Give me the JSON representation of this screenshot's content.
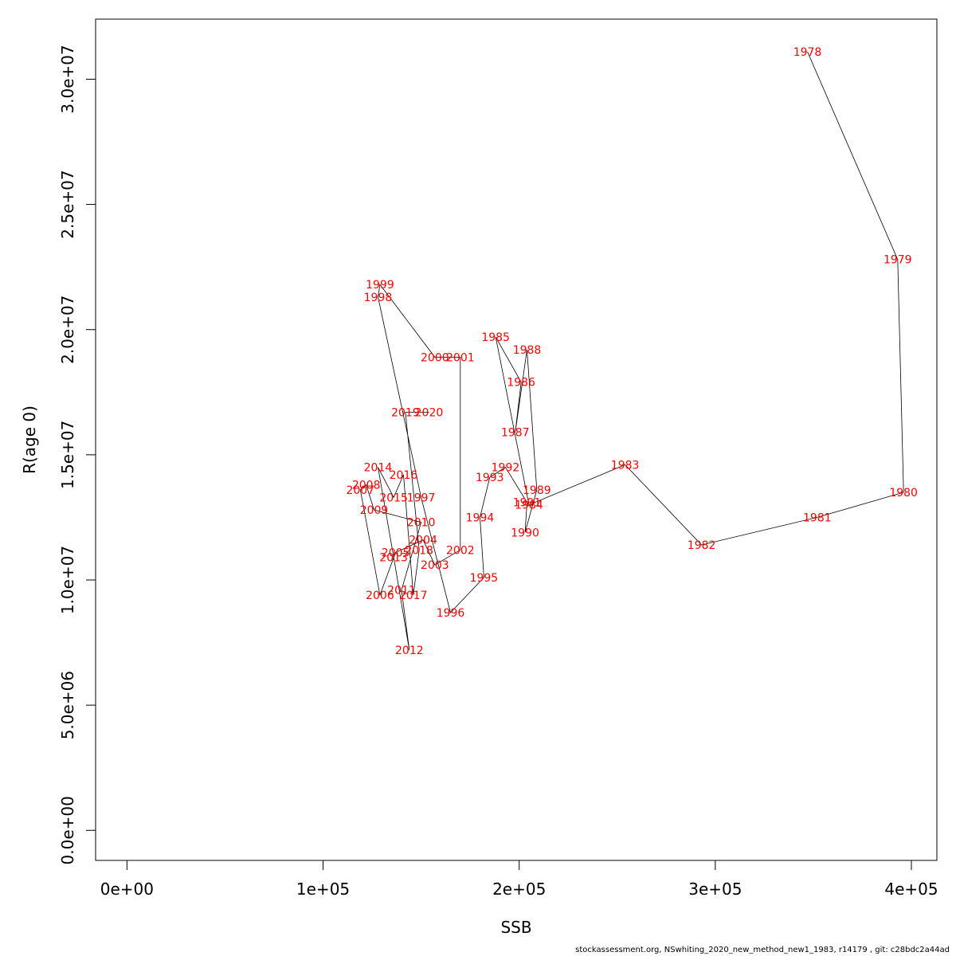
{
  "chart_data": {
    "type": "line",
    "title": "",
    "xlabel": "SSB",
    "ylabel": "R(age 0)",
    "xlim": [
      -16000,
      413000
    ],
    "ylim": [
      -1200000,
      32400000
    ],
    "x_ticks": [
      {
        "value": 0,
        "label": "0e+00"
      },
      {
        "value": 100000,
        "label": "1e+05"
      },
      {
        "value": 200000,
        "label": "2e+05"
      },
      {
        "value": 300000,
        "label": "3e+05"
      },
      {
        "value": 400000,
        "label": "4e+05"
      }
    ],
    "y_ticks": [
      {
        "value": 0,
        "label": "0.0e+00"
      },
      {
        "value": 5000000,
        "label": "5.0e+06"
      },
      {
        "value": 10000000,
        "label": "1.0e+07"
      },
      {
        "value": 15000000,
        "label": "1.5e+07"
      },
      {
        "value": 20000000,
        "label": "2.0e+07"
      },
      {
        "value": 25000000,
        "label": "2.5e+07"
      },
      {
        "value": 30000000,
        "label": "3.0e+07"
      }
    ],
    "grid": false,
    "points": [
      {
        "label": "1978",
        "x": 347000,
        "y": 31100000
      },
      {
        "label": "1979",
        "x": 393000,
        "y": 22800000
      },
      {
        "label": "1980",
        "x": 396000,
        "y": 13500000
      },
      {
        "label": "1981",
        "x": 352000,
        "y": 12500000
      },
      {
        "label": "1982",
        "x": 293000,
        "y": 11400000
      },
      {
        "label": "1983",
        "x": 254000,
        "y": 14600000
      },
      {
        "label": "1984",
        "x": 205000,
        "y": 13000000
      },
      {
        "label": "1985",
        "x": 188000,
        "y": 19700000
      },
      {
        "label": "1986",
        "x": 201000,
        "y": 17900000
      },
      {
        "label": "1987",
        "x": 198000,
        "y": 15900000
      },
      {
        "label": "1988",
        "x": 204000,
        "y": 19200000
      },
      {
        "label": "1989",
        "x": 209000,
        "y": 13600000
      },
      {
        "label": "1990",
        "x": 203000,
        "y": 11900000
      },
      {
        "label": "1991",
        "x": 204000,
        "y": 13100000
      },
      {
        "label": "1992",
        "x": 193000,
        "y": 14500000
      },
      {
        "label": "1993",
        "x": 185000,
        "y": 14100000
      },
      {
        "label": "1994",
        "x": 180000,
        "y": 12500000
      },
      {
        "label": "1995",
        "x": 182000,
        "y": 10100000
      },
      {
        "label": "1996",
        "x": 165000,
        "y": 8700000
      },
      {
        "label": "1997",
        "x": 150000,
        "y": 13300000
      },
      {
        "label": "1998",
        "x": 128000,
        "y": 21300000
      },
      {
        "label": "1999",
        "x": 129000,
        "y": 21800000
      },
      {
        "label": "2000",
        "x": 157000,
        "y": 18900000
      },
      {
        "label": "2001",
        "x": 170000,
        "y": 18900000
      },
      {
        "label": "2002",
        "x": 170000,
        "y": 11200000
      },
      {
        "label": "2003",
        "x": 157000,
        "y": 10600000
      },
      {
        "label": "2004",
        "x": 151000,
        "y": 11600000
      },
      {
        "label": "2005",
        "x": 137000,
        "y": 11100000
      },
      {
        "label": "2006",
        "x": 129000,
        "y": 9400000
      },
      {
        "label": "2007",
        "x": 119000,
        "y": 13600000
      },
      {
        "label": "2008",
        "x": 122000,
        "y": 13800000
      },
      {
        "label": "2009",
        "x": 126000,
        "y": 12800000
      },
      {
        "label": "2010",
        "x": 150000,
        "y": 12300000
      },
      {
        "label": "2011",
        "x": 140000,
        "y": 9600000
      },
      {
        "label": "2012",
        "x": 144000,
        "y": 7200000
      },
      {
        "label": "2013",
        "x": 136000,
        "y": 10900000
      },
      {
        "label": "2014",
        "x": 128000,
        "y": 14500000
      },
      {
        "label": "2015",
        "x": 136000,
        "y": 13300000
      },
      {
        "label": "2016",
        "x": 141000,
        "y": 14200000
      },
      {
        "label": "2017",
        "x": 146000,
        "y": 9400000
      },
      {
        "label": "2018",
        "x": 149000,
        "y": 11200000
      },
      {
        "label": "2019",
        "x": 142000,
        "y": 16700000
      },
      {
        "label": "2020",
        "x": 154000,
        "y": 16700000
      }
    ]
  },
  "footer": "stockassessment.org, NSwhiting_2020_new_method_new1_1983, r14179 , git: c28bdc2a44ad",
  "colors": {
    "label": "#ff0000",
    "line": "#000000",
    "axis": "#000000"
  }
}
